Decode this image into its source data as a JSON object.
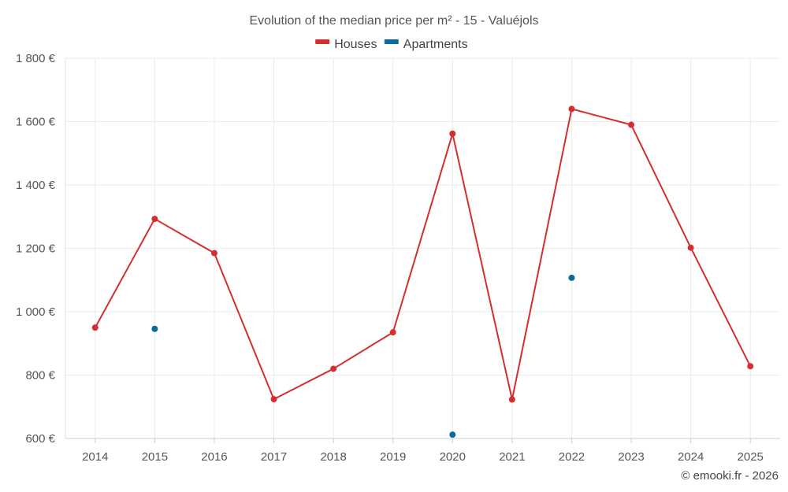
{
  "chart_data": {
    "type": "line",
    "title": "Evolution of the median price per m² - 15 - Valuéjols",
    "xlabel": "",
    "ylabel": "",
    "categories": [
      "2014",
      "2015",
      "2016",
      "2017",
      "2018",
      "2019",
      "2020",
      "2021",
      "2022",
      "2023",
      "2024",
      "2025"
    ],
    "ylim": [
      600,
      1800
    ],
    "y_ticks": [
      600,
      800,
      1000,
      1200,
      1400,
      1600,
      1800
    ],
    "y_tick_labels": [
      "600 €",
      "800 €",
      "1 000 €",
      "1 200 €",
      "1 400 €",
      "1 600 €",
      "1 800 €"
    ],
    "grid": true,
    "legend_position": "top-center",
    "series": [
      {
        "name": "Houses",
        "color": "#d32f2f",
        "style": "line+markers",
        "values": [
          950,
          1293,
          1185,
          724,
          820,
          935,
          1562,
          723,
          1640,
          1590,
          1202,
          828
        ]
      },
      {
        "name": "Apartments",
        "color": "#0d6a9e",
        "style": "markers",
        "values": [
          null,
          946,
          null,
          null,
          null,
          null,
          612,
          null,
          1107,
          null,
          null,
          null
        ]
      }
    ],
    "credit": "© emooki.fr - 2026"
  }
}
